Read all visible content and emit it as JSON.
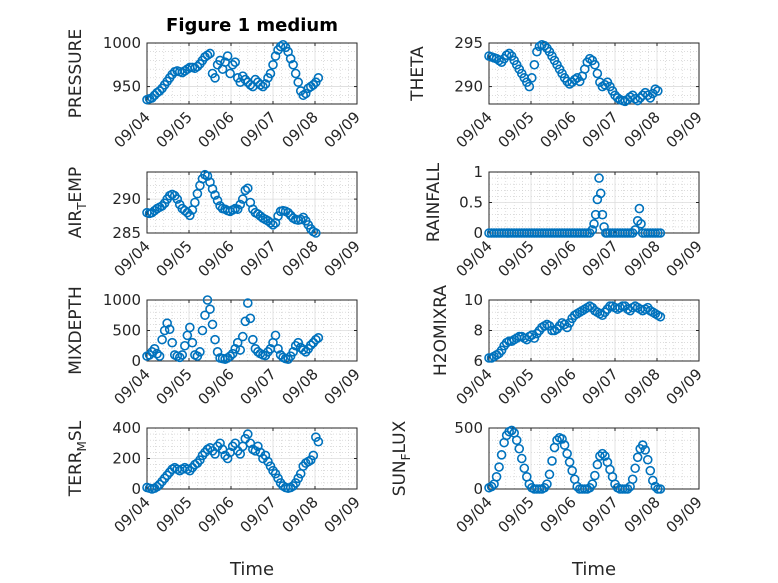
{
  "figure": {
    "title": "Figure 1 medium",
    "xlabel": "Time"
  },
  "colors": {
    "marker": "#0072BD",
    "axes": "#262626",
    "grid": "#c8c8c8",
    "background": "#ffffff"
  },
  "chart_data": [
    {
      "type": "scatter",
      "ylabel": "PRESSURE",
      "x_ticks": [
        "09/04",
        "09/05",
        "09/06",
        "09/07",
        "09/08",
        "09/09"
      ],
      "xlim": [
        0,
        5
      ],
      "ylim": [
        930,
        1000
      ],
      "y_ticks": [
        "950",
        "1000"
      ],
      "y_tick_values": [
        950,
        1000
      ],
      "grid": "on",
      "x": [
        0.0,
        0.06,
        0.12,
        0.18,
        0.24,
        0.3,
        0.36,
        0.42,
        0.48,
        0.54,
        0.6,
        0.66,
        0.72,
        0.78,
        0.84,
        0.9,
        0.96,
        1.02,
        1.08,
        1.14,
        1.2,
        1.26,
        1.32,
        1.38,
        1.44,
        1.5,
        1.56,
        1.62,
        1.68,
        1.74,
        1.8,
        1.86,
        1.92,
        1.98,
        2.04,
        2.1,
        2.16,
        2.22,
        2.28,
        2.34,
        2.4,
        2.46,
        2.52,
        2.58,
        2.64,
        2.7,
        2.76,
        2.82,
        2.88,
        2.94,
        3.0,
        3.06,
        3.12,
        3.18,
        3.24,
        3.3,
        3.36,
        3.42,
        3.48,
        3.54,
        3.6,
        3.66,
        3.72,
        3.78,
        3.84,
        3.9,
        3.96,
        4.02,
        4.08
      ],
      "y": [
        935,
        936,
        937,
        940,
        943,
        945,
        948,
        952,
        956,
        960,
        964,
        967,
        968,
        967,
        966,
        968,
        970,
        972,
        972,
        971,
        973,
        976,
        980,
        984,
        986,
        988,
        965,
        960,
        975,
        980,
        970,
        978,
        985,
        965,
        975,
        978,
        960,
        955,
        962,
        958,
        955,
        952,
        950,
        958,
        955,
        952,
        950,
        953,
        960,
        965,
        975,
        985,
        992,
        996,
        998,
        995,
        990,
        982,
        975,
        965,
        955,
        945,
        940,
        942,
        948,
        950,
        952,
        955,
        960
      ]
    },
    {
      "type": "scatter",
      "ylabel": "THETA",
      "x_ticks": [
        "09/04",
        "09/05",
        "09/06",
        "09/07",
        "09/08",
        "09/09"
      ],
      "xlim": [
        0,
        5
      ],
      "ylim": [
        288,
        295
      ],
      "y_ticks": [
        "290",
        "295"
      ],
      "y_tick_values": [
        290,
        295
      ],
      "grid": "on",
      "x": [
        0.0,
        0.06,
        0.12,
        0.18,
        0.24,
        0.3,
        0.36,
        0.42,
        0.48,
        0.54,
        0.6,
        0.66,
        0.72,
        0.78,
        0.84,
        0.9,
        0.96,
        1.02,
        1.08,
        1.14,
        1.2,
        1.26,
        1.32,
        1.38,
        1.44,
        1.5,
        1.56,
        1.62,
        1.68,
        1.74,
        1.8,
        1.86,
        1.92,
        1.98,
        2.04,
        2.1,
        2.16,
        2.22,
        2.28,
        2.34,
        2.4,
        2.46,
        2.52,
        2.58,
        2.64,
        2.7,
        2.76,
        2.82,
        2.88,
        2.94,
        3.0,
        3.06,
        3.12,
        3.18,
        3.24,
        3.3,
        3.36,
        3.42,
        3.48,
        3.54,
        3.6,
        3.66,
        3.72,
        3.78,
        3.84,
        3.9,
        3.96,
        4.02
      ],
      "y": [
        293.5,
        293.4,
        293.3,
        293.2,
        293.0,
        292.8,
        293.2,
        293.6,
        293.8,
        293.5,
        293.0,
        292.5,
        292.0,
        291.5,
        291.0,
        290.5,
        290.0,
        291.0,
        292.5,
        294.0,
        294.6,
        294.8,
        294.7,
        294.4,
        294.0,
        293.5,
        293.0,
        292.5,
        292.0,
        291.5,
        291.0,
        290.6,
        290.3,
        290.5,
        290.8,
        291.0,
        290.6,
        291.2,
        292.0,
        292.8,
        293.2,
        293.0,
        292.5,
        291.5,
        290.5,
        290.0,
        290.2,
        290.5,
        290.0,
        289.5,
        289.0,
        288.7,
        288.5,
        288.4,
        288.3,
        288.5,
        288.8,
        289.0,
        288.6,
        288.4,
        288.7,
        289.0,
        289.3,
        289.0,
        288.7,
        289.2,
        289.7,
        289.5
      ]
    },
    {
      "type": "scatter",
      "ylabel": "AIR",
      "ylabel_sub": "T",
      "ylabel_rest": "EMP",
      "x_ticks": [
        "09/04",
        "09/05",
        "09/06",
        "09/07",
        "09/08",
        "09/09"
      ],
      "xlim": [
        0,
        5
      ],
      "ylim": [
        285,
        294
      ],
      "y_ticks": [
        "285",
        "290"
      ],
      "y_tick_values": [
        285,
        290
      ],
      "grid": "on",
      "x": [
        0.0,
        0.06,
        0.12,
        0.18,
        0.24,
        0.3,
        0.36,
        0.42,
        0.48,
        0.54,
        0.6,
        0.66,
        0.72,
        0.78,
        0.84,
        0.9,
        0.96,
        1.02,
        1.08,
        1.14,
        1.2,
        1.26,
        1.32,
        1.38,
        1.44,
        1.5,
        1.56,
        1.62,
        1.68,
        1.74,
        1.8,
        1.86,
        1.92,
        1.98,
        2.04,
        2.1,
        2.16,
        2.22,
        2.28,
        2.34,
        2.4,
        2.46,
        2.52,
        2.58,
        2.64,
        2.7,
        2.76,
        2.82,
        2.88,
        2.94,
        3.0,
        3.06,
        3.12,
        3.18,
        3.24,
        3.3,
        3.36,
        3.42,
        3.48,
        3.54,
        3.6,
        3.66,
        3.72,
        3.78,
        3.84,
        3.9,
        3.96,
        4.02
      ],
      "y": [
        288.0,
        287.9,
        288.0,
        288.3,
        288.6,
        288.8,
        289.0,
        289.4,
        290.0,
        290.5,
        290.7,
        290.5,
        290.0,
        289.2,
        288.6,
        288.3,
        288.0,
        287.6,
        288.4,
        289.5,
        290.8,
        292.0,
        293.0,
        293.6,
        293.4,
        292.5,
        291.5,
        290.6,
        289.8,
        289.0,
        288.6,
        288.5,
        288.3,
        288.2,
        288.4,
        288.6,
        288.5,
        289.2,
        290.0,
        291.3,
        291.6,
        289.5,
        288.5,
        288.0,
        287.8,
        287.5,
        287.2,
        287.0,
        286.8,
        286.5,
        286.2,
        286.5,
        287.5,
        288.2,
        288.3,
        288.2,
        288.0,
        287.6,
        287.2,
        287.0,
        286.9,
        287.0,
        287.3,
        286.8,
        286.2,
        285.6,
        285.2,
        285.0
      ]
    },
    {
      "type": "scatter",
      "ylabel": "RAINFALL",
      "x_ticks": [
        "09/04",
        "09/05",
        "09/06",
        "09/07",
        "09/08",
        "09/09"
      ],
      "xlim": [
        0,
        5
      ],
      "ylim": [
        0,
        1
      ],
      "y_ticks": [
        "0",
        "0.5",
        "1"
      ],
      "y_tick_values": [
        0,
        0.5,
        1
      ],
      "grid": "on",
      "x": [
        0.0,
        0.06,
        0.12,
        0.18,
        0.24,
        0.3,
        0.36,
        0.42,
        0.48,
        0.54,
        0.6,
        0.66,
        0.72,
        0.78,
        0.84,
        0.9,
        0.96,
        1.02,
        1.08,
        1.14,
        1.2,
        1.26,
        1.32,
        1.38,
        1.44,
        1.5,
        1.56,
        1.62,
        1.68,
        1.74,
        1.8,
        1.86,
        1.92,
        1.98,
        2.04,
        2.1,
        2.16,
        2.22,
        2.28,
        2.34,
        2.4,
        2.46,
        2.5,
        2.54,
        2.58,
        2.62,
        2.66,
        2.7,
        2.74,
        2.78,
        2.82,
        2.88,
        2.94,
        3.0,
        3.06,
        3.12,
        3.18,
        3.24,
        3.3,
        3.36,
        3.42,
        3.48,
        3.54,
        3.58,
        3.62,
        3.66,
        3.72,
        3.78,
        3.84,
        3.9,
        3.96,
        4.02,
        4.08
      ],
      "y": [
        0,
        0,
        0,
        0,
        0,
        0,
        0,
        0,
        0,
        0,
        0,
        0,
        0,
        0,
        0,
        0,
        0,
        0,
        0,
        0,
        0,
        0,
        0,
        0,
        0,
        0,
        0,
        0,
        0,
        0,
        0,
        0,
        0,
        0,
        0,
        0,
        0,
        0,
        0,
        0,
        0,
        0.05,
        0.15,
        0.3,
        0.55,
        0.9,
        0.65,
        0.3,
        0.1,
        0,
        0,
        0,
        0,
        0,
        0,
        0,
        0,
        0,
        0,
        0,
        0,
        0.05,
        0.2,
        0.4,
        0.15,
        0,
        0,
        0,
        0,
        0,
        0,
        0,
        0
      ]
    },
    {
      "type": "scatter",
      "ylabel": "MIXDEPTH",
      "x_ticks": [
        "09/04",
        "09/05",
        "09/06",
        "09/07",
        "09/08",
        "09/09"
      ],
      "xlim": [
        0,
        5
      ],
      "ylim": [
        0,
        1000
      ],
      "y_ticks": [
        "0",
        "500",
        "1000"
      ],
      "y_tick_values": [
        0,
        500,
        1000
      ],
      "grid": "on",
      "x": [
        0.0,
        0.06,
        0.12,
        0.18,
        0.24,
        0.3,
        0.36,
        0.42,
        0.48,
        0.54,
        0.6,
        0.66,
        0.72,
        0.78,
        0.84,
        0.9,
        0.96,
        1.02,
        1.08,
        1.14,
        1.2,
        1.26,
        1.32,
        1.38,
        1.44,
        1.5,
        1.56,
        1.62,
        1.68,
        1.74,
        1.8,
        1.86,
        1.92,
        1.98,
        2.04,
        2.1,
        2.16,
        2.22,
        2.28,
        2.34,
        2.4,
        2.46,
        2.52,
        2.58,
        2.64,
        2.7,
        2.76,
        2.82,
        2.88,
        2.94,
        3.0,
        3.06,
        3.12,
        3.18,
        3.24,
        3.3,
        3.36,
        3.42,
        3.48,
        3.54,
        3.6,
        3.66,
        3.72,
        3.78,
        3.84,
        3.9,
        3.96,
        4.02,
        4.08
      ],
      "y": [
        80,
        100,
        150,
        200,
        120,
        80,
        350,
        500,
        620,
        520,
        300,
        100,
        80,
        60,
        100,
        250,
        420,
        550,
        300,
        100,
        80,
        150,
        500,
        750,
        1000,
        850,
        600,
        350,
        150,
        50,
        40,
        30,
        50,
        80,
        120,
        200,
        300,
        180,
        400,
        650,
        950,
        700,
        350,
        200,
        150,
        120,
        100,
        90,
        150,
        200,
        300,
        420,
        200,
        100,
        60,
        40,
        30,
        80,
        150,
        250,
        300,
        220,
        180,
        150,
        200,
        260,
        300,
        350,
        380
      ]
    },
    {
      "type": "scatter",
      "ylabel": "H2OMIXRA",
      "x_ticks": [
        "09/04",
        "09/05",
        "09/06",
        "09/07",
        "09/08",
        "09/09"
      ],
      "xlim": [
        0,
        5
      ],
      "ylim": [
        6,
        10
      ],
      "y_ticks": [
        "6",
        "8",
        "10"
      ],
      "y_tick_values": [
        6,
        8,
        10
      ],
      "grid": "on",
      "x": [
        0.0,
        0.06,
        0.12,
        0.18,
        0.24,
        0.3,
        0.36,
        0.42,
        0.48,
        0.54,
        0.6,
        0.66,
        0.72,
        0.78,
        0.84,
        0.9,
        0.96,
        1.02,
        1.08,
        1.14,
        1.2,
        1.26,
        1.32,
        1.38,
        1.44,
        1.5,
        1.56,
        1.62,
        1.68,
        1.74,
        1.8,
        1.86,
        1.92,
        1.98,
        2.04,
        2.1,
        2.16,
        2.22,
        2.28,
        2.34,
        2.4,
        2.46,
        2.52,
        2.58,
        2.64,
        2.7,
        2.76,
        2.82,
        2.88,
        2.94,
        3.0,
        3.06,
        3.12,
        3.18,
        3.24,
        3.3,
        3.36,
        3.42,
        3.48,
        3.54,
        3.6,
        3.66,
        3.72,
        3.78,
        3.84,
        3.9,
        3.96,
        4.02,
        4.08
      ],
      "y": [
        6.2,
        6.2,
        6.3,
        6.4,
        6.5,
        6.7,
        7.0,
        7.2,
        7.3,
        7.3,
        7.4,
        7.5,
        7.6,
        7.6,
        7.5,
        7.4,
        7.6,
        7.7,
        7.5,
        7.8,
        8.0,
        8.2,
        8.3,
        8.4,
        8.3,
        8.0,
        8.0,
        8.1,
        8.3,
        8.5,
        8.4,
        8.2,
        8.5,
        8.8,
        9.0,
        9.1,
        9.2,
        9.3,
        9.4,
        9.5,
        9.6,
        9.5,
        9.3,
        9.2,
        9.1,
        9.0,
        9.2,
        9.4,
        9.6,
        9.6,
        9.5,
        9.4,
        9.5,
        9.6,
        9.6,
        9.4,
        9.3,
        9.5,
        9.6,
        9.5,
        9.4,
        9.3,
        9.4,
        9.5,
        9.3,
        9.2,
        9.1,
        9.0,
        8.9
      ]
    },
    {
      "type": "scatter",
      "ylabel": "TERR",
      "ylabel_sub": "M",
      "ylabel_rest": "SL",
      "x_ticks": [
        "09/04",
        "09/05",
        "09/06",
        "09/07",
        "09/08",
        "09/09"
      ],
      "xlim": [
        0,
        5
      ],
      "ylim": [
        0,
        400
      ],
      "y_ticks": [
        "0",
        "200",
        "400"
      ],
      "y_tick_values": [
        0,
        200,
        400
      ],
      "grid": "on",
      "x": [
        0.0,
        0.06,
        0.12,
        0.18,
        0.24,
        0.3,
        0.36,
        0.42,
        0.48,
        0.54,
        0.6,
        0.66,
        0.72,
        0.78,
        0.84,
        0.9,
        0.96,
        1.02,
        1.08,
        1.14,
        1.2,
        1.26,
        1.32,
        1.38,
        1.44,
        1.5,
        1.56,
        1.62,
        1.68,
        1.74,
        1.8,
        1.86,
        1.92,
        1.98,
        2.04,
        2.1,
        2.16,
        2.22,
        2.28,
        2.34,
        2.4,
        2.46,
        2.52,
        2.58,
        2.64,
        2.7,
        2.76,
        2.82,
        2.88,
        2.94,
        3.0,
        3.06,
        3.12,
        3.18,
        3.24,
        3.3,
        3.36,
        3.42,
        3.48,
        3.54,
        3.6,
        3.66,
        3.72,
        3.78,
        3.84,
        3.9,
        3.96,
        4.02,
        4.08
      ],
      "y": [
        10,
        5,
        0,
        5,
        15,
        30,
        50,
        70,
        90,
        110,
        130,
        140,
        130,
        120,
        130,
        140,
        130,
        120,
        140,
        160,
        170,
        190,
        220,
        240,
        260,
        270,
        250,
        230,
        280,
        300,
        260,
        220,
        200,
        240,
        280,
        300,
        250,
        230,
        280,
        330,
        360,
        300,
        260,
        250,
        280,
        240,
        200,
        220,
        180,
        150,
        120,
        100,
        70,
        40,
        20,
        10,
        5,
        10,
        20,
        40,
        70,
        100,
        150,
        170,
        180,
        190,
        220,
        340,
        310
      ]
    },
    {
      "type": "scatter",
      "ylabel": "SUN",
      "ylabel_sub": "F",
      "ylabel_rest": "LUX",
      "x_ticks": [
        "09/04",
        "09/05",
        "09/06",
        "09/07",
        "09/08",
        "09/09"
      ],
      "xlim": [
        0,
        5
      ],
      "ylim": [
        0,
        500
      ],
      "y_ticks": [
        "0",
        "500"
      ],
      "y_tick_values": [
        0,
        500
      ],
      "grid": "on",
      "x": [
        0.0,
        0.06,
        0.12,
        0.18,
        0.24,
        0.3,
        0.36,
        0.42,
        0.48,
        0.54,
        0.6,
        0.66,
        0.72,
        0.78,
        0.84,
        0.9,
        0.96,
        1.02,
        1.08,
        1.14,
        1.2,
        1.26,
        1.32,
        1.38,
        1.44,
        1.5,
        1.56,
        1.62,
        1.68,
        1.74,
        1.8,
        1.86,
        1.92,
        1.98,
        2.04,
        2.1,
        2.16,
        2.22,
        2.28,
        2.34,
        2.4,
        2.46,
        2.52,
        2.58,
        2.64,
        2.7,
        2.76,
        2.82,
        2.88,
        2.94,
        3.0,
        3.06,
        3.12,
        3.18,
        3.24,
        3.3,
        3.36,
        3.42,
        3.48,
        3.54,
        3.6,
        3.66,
        3.72,
        3.78,
        3.84,
        3.9,
        3.96,
        4.02,
        4.08
      ],
      "y": [
        10,
        20,
        40,
        100,
        180,
        280,
        380,
        440,
        470,
        480,
        460,
        400,
        330,
        250,
        170,
        100,
        40,
        10,
        0,
        0,
        0,
        0,
        10,
        40,
        120,
        230,
        340,
        400,
        420,
        410,
        360,
        290,
        220,
        150,
        80,
        20,
        0,
        0,
        0,
        0,
        10,
        40,
        110,
        200,
        270,
        290,
        270,
        220,
        160,
        100,
        40,
        10,
        0,
        0,
        0,
        0,
        20,
        80,
        170,
        260,
        330,
        360,
        320,
        240,
        150,
        70,
        20,
        0,
        0
      ]
    }
  ]
}
